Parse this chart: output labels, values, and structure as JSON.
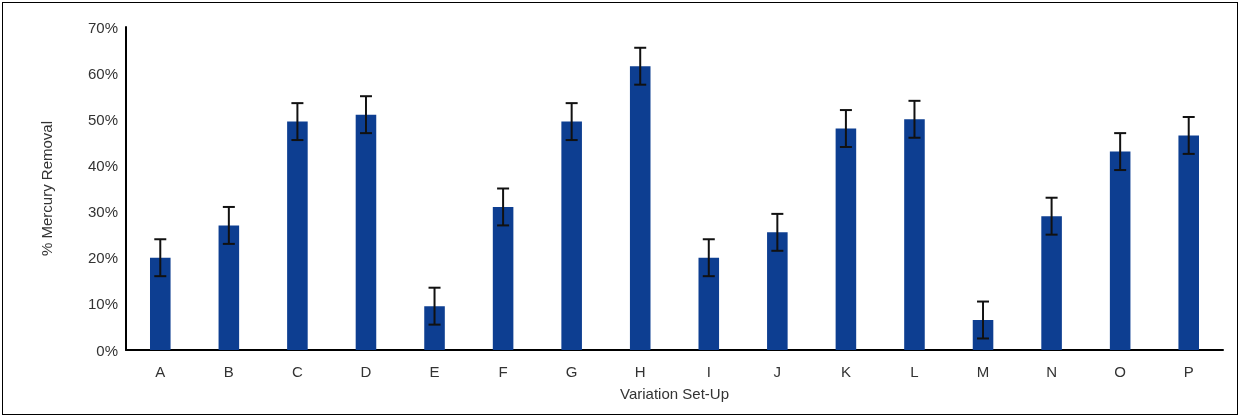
{
  "chart_data": {
    "type": "bar",
    "xlabel": "Variation Set-Up",
    "ylabel": "% Mercury Removal",
    "categories": [
      "A",
      "B",
      "C",
      "D",
      "E",
      "F",
      "G",
      "H",
      "I",
      "J",
      "K",
      "L",
      "M",
      "N",
      "O",
      "P"
    ],
    "values": [
      20,
      27,
      49.5,
      51,
      9.5,
      31,
      49.5,
      61.5,
      20,
      25.5,
      48,
      50,
      6.5,
      29,
      43,
      46.5
    ],
    "errors": [
      4,
      4,
      4,
      4,
      4,
      4,
      4,
      4,
      4,
      4,
      4,
      4,
      4,
      4,
      4,
      4
    ],
    "color": "#0d3e91",
    "ylim": [
      0,
      70
    ],
    "yticks": [
      {
        "value": 0,
        "label": "0%"
      },
      {
        "value": 10,
        "label": "10%"
      },
      {
        "value": 20,
        "label": "20%"
      },
      {
        "value": 30,
        "label": "30%"
      },
      {
        "value": 40,
        "label": "40%"
      },
      {
        "value": 50,
        "label": "50%"
      },
      {
        "value": 60,
        "label": "60%"
      },
      {
        "value": 70,
        "label": "70%"
      }
    ],
    "grid": false
  }
}
